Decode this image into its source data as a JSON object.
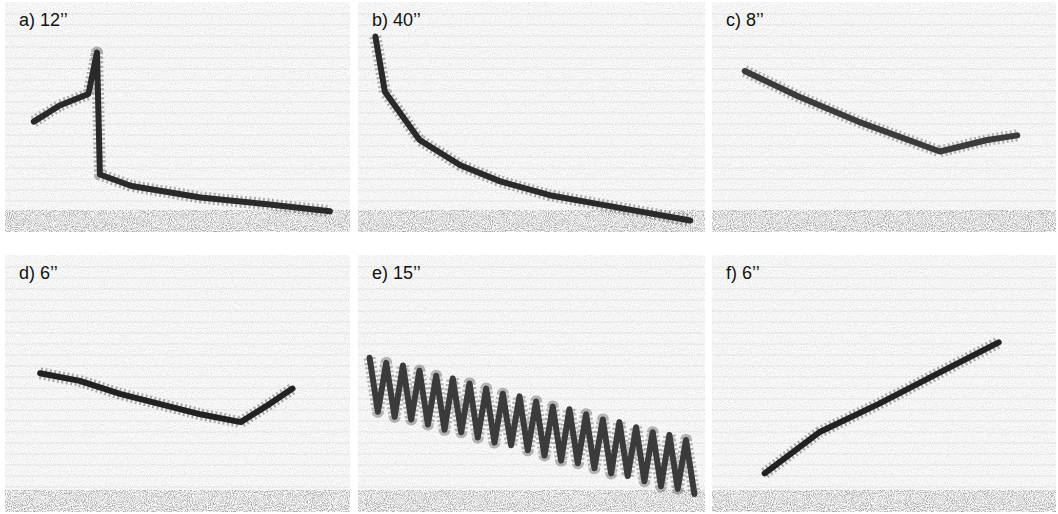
{
  "chart_data": [
    {
      "type": "line",
      "title": "a) 12’’",
      "xlim": [
        0,
        12
      ],
      "ylim": [
        0,
        10
      ],
      "tick_labels": false,
      "color": "#2a2a2a",
      "x": [
        1.0,
        1.9,
        2.9,
        3.2,
        3.3,
        4.4,
        6.8,
        9.2,
        11.3
      ],
      "values": [
        4.8,
        5.5,
        6.0,
        7.8,
        2.5,
        2.0,
        1.5,
        1.2,
        0.9
      ]
    },
    {
      "type": "line",
      "title": "b) 40’’",
      "xlim": [
        0,
        40
      ],
      "ylim": [
        0,
        10
      ],
      "tick_labels": false,
      "color": "#2a2a2a",
      "x": [
        2.0,
        3.1,
        7.1,
        11.8,
        16.4,
        22.1,
        27.9,
        38.3
      ],
      "values": [
        8.5,
        6.1,
        4.0,
        2.9,
        2.2,
        1.6,
        1.2,
        0.5
      ]
    },
    {
      "type": "line",
      "title": "c) 8’’",
      "xlim": [
        0,
        8
      ],
      "ylim": [
        0,
        10
      ],
      "tick_labels": false,
      "color": "#3a3a3a",
      "x": [
        0.76,
        2.0,
        3.4,
        5.3,
        6.4,
        7.1
      ],
      "values": [
        7.0,
        5.9,
        4.8,
        3.5,
        4.0,
        4.2
      ]
    },
    {
      "type": "line",
      "title": "d) 6’’",
      "xlim": [
        0,
        6
      ],
      "ylim": [
        0,
        10
      ],
      "tick_labels": false,
      "color": "#222222",
      "x": [
        0.61,
        1.3,
        2.0,
        2.7,
        3.4,
        4.1,
        4.6,
        5.0
      ],
      "values": [
        5.4,
        5.1,
        4.6,
        4.2,
        3.8,
        3.5,
        4.2,
        4.8
      ]
    },
    {
      "type": "line",
      "title": "e) 15’’",
      "xlim": [
        0,
        15
      ],
      "ylim": [
        0,
        10
      ],
      "tick_labels": false,
      "color": "#3a3a3a",
      "x": [
        0.5,
        0.86,
        1.22,
        1.58,
        1.94,
        2.3,
        2.66,
        3.02,
        3.38,
        3.74,
        4.1,
        4.46,
        4.82,
        5.18,
        5.54,
        5.9,
        6.26,
        6.62,
        6.98,
        7.34,
        7.7,
        8.06,
        8.42,
        8.78,
        9.14,
        9.5,
        9.86,
        10.22,
        10.58,
        10.94,
        11.3,
        11.66,
        12.02,
        12.38,
        12.74,
        13.1,
        13.46,
        13.82,
        14.18,
        14.54
      ],
      "values": [
        6.0,
        3.9,
        5.8,
        3.7,
        5.7,
        3.6,
        5.5,
        3.4,
        5.3,
        3.2,
        5.2,
        3.1,
        5.0,
        2.9,
        4.8,
        2.7,
        4.6,
        2.6,
        4.5,
        2.4,
        4.3,
        2.2,
        4.1,
        2.0,
        4.0,
        1.9,
        3.8,
        1.7,
        3.6,
        1.5,
        3.5,
        1.4,
        3.3,
        1.2,
        3.1,
        1.0,
        3.0,
        0.9,
        2.8,
        0.7
      ]
    },
    {
      "type": "line",
      "title": "f) 6’’",
      "xlim": [
        0,
        6
      ],
      "ylim": [
        0,
        10
      ],
      "tick_labels": false,
      "color": "#222222",
      "x": [
        0.92,
        1.87,
        2.9,
        3.95,
        5.0
      ],
      "values": [
        1.5,
        3.1,
        4.2,
        5.4,
        6.6
      ]
    }
  ]
}
